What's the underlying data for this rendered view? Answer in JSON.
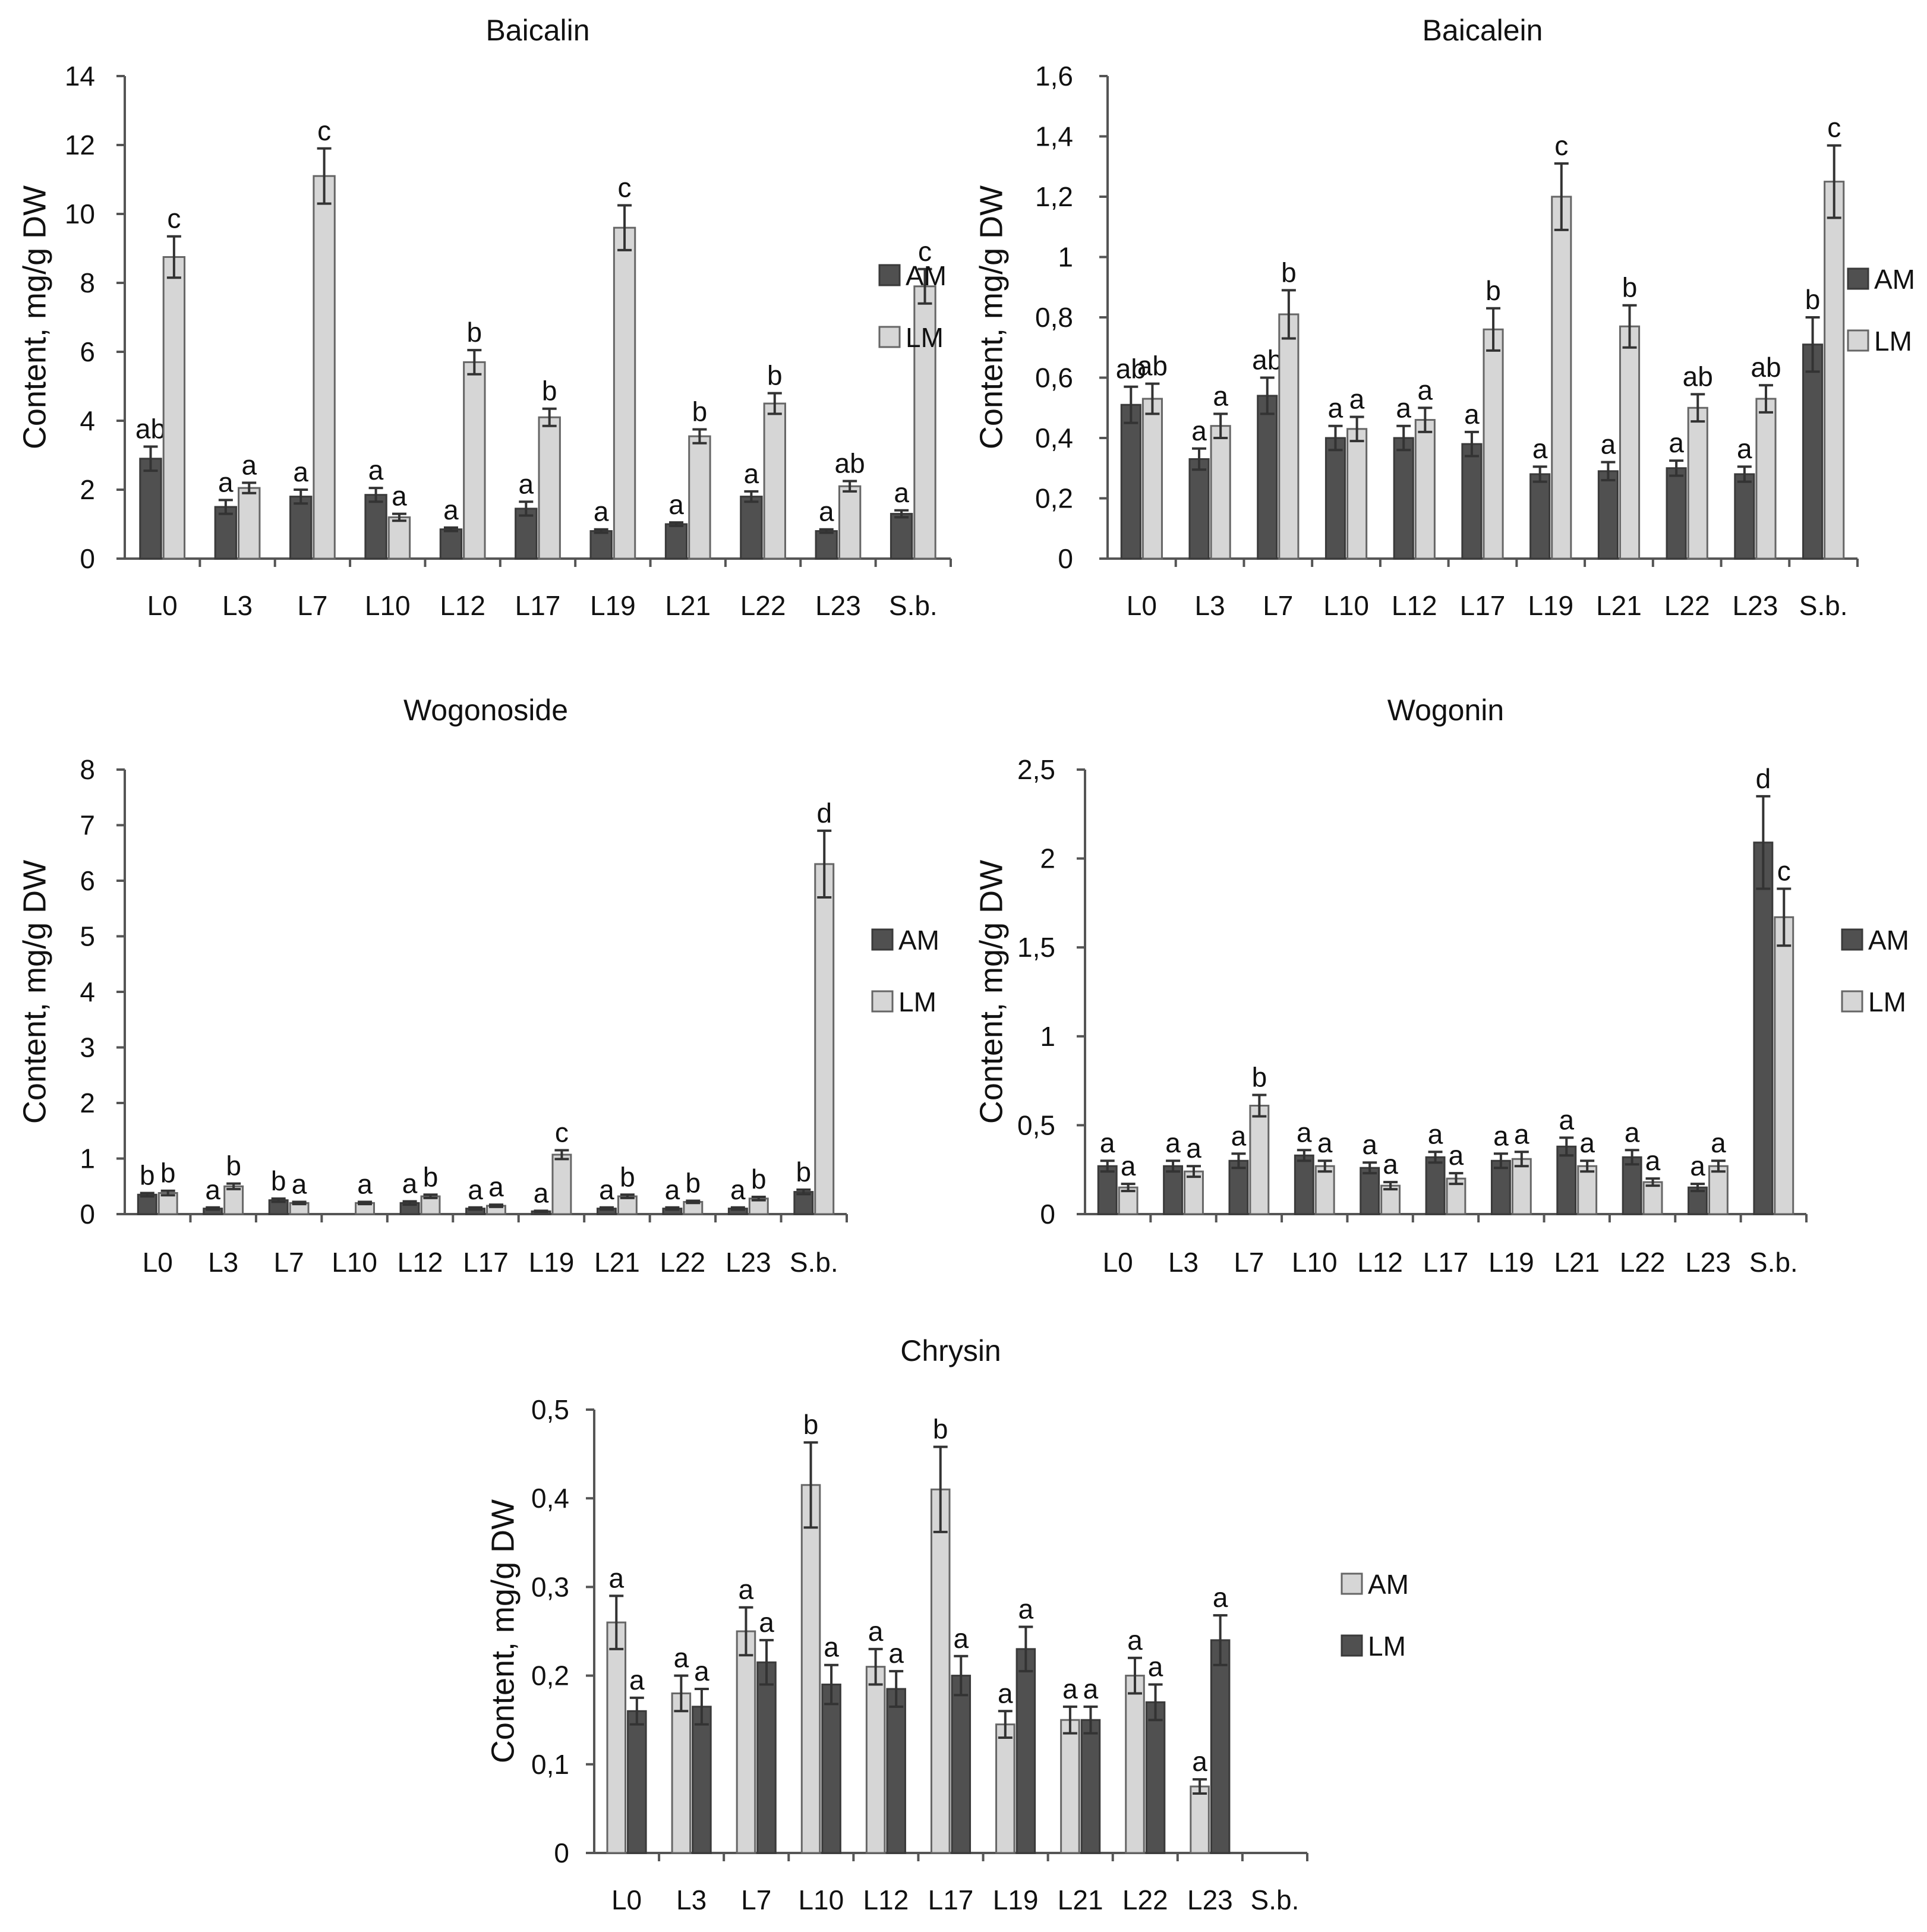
{
  "colors": {
    "dark": "#505050",
    "light": "#d6d6d6",
    "axis": "#555555",
    "text": "#111111"
  },
  "chart_data": [
    {
      "type": "bar",
      "title": "Baicalin",
      "ylabel": "Content, mg/g DW",
      "ylim": [
        0,
        14
      ],
      "yticks": [
        0,
        2,
        4,
        6,
        8,
        10,
        12,
        14
      ],
      "ytick_labels": [
        "0",
        "2",
        "4",
        "6",
        "8",
        "10",
        "12",
        "14"
      ],
      "categories": [
        "L0",
        "L3",
        "L7",
        "L10",
        "L12",
        "L17",
        "L19",
        "L21",
        "L22",
        "L23",
        "S.b."
      ],
      "series": [
        {
          "name": "AM",
          "color": "dark",
          "values": [
            2.9,
            1.5,
            1.8,
            1.85,
            0.85,
            1.45,
            0.8,
            1.0,
            1.8,
            0.8,
            1.3
          ],
          "errors": [
            0.35,
            0.2,
            0.2,
            0.2,
            0.05,
            0.2,
            0.05,
            0.05,
            0.15,
            0.05,
            0.1
          ],
          "labels": [
            "ab",
            "a",
            "a",
            "a",
            "a",
            "a",
            "a",
            "a",
            "a",
            "a",
            "a"
          ]
        },
        {
          "name": "LM",
          "color": "light",
          "values": [
            8.75,
            2.05,
            11.1,
            1.2,
            5.7,
            4.1,
            9.6,
            3.55,
            4.5,
            2.1,
            7.9
          ],
          "errors": [
            0.6,
            0.15,
            0.8,
            0.1,
            0.35,
            0.25,
            0.65,
            0.2,
            0.3,
            0.15,
            0.5
          ],
          "labels": [
            "c",
            "a",
            "c",
            "a",
            "b",
            "b",
            "c",
            "b",
            "b",
            "ab",
            "c"
          ]
        }
      ],
      "legend": "right"
    },
    {
      "type": "bar",
      "title": "Baicalein",
      "ylabel": "Content, mg/g DW",
      "ylim": [
        0,
        1.6
      ],
      "yticks": [
        0,
        0.2,
        0.4,
        0.6,
        0.8,
        1,
        1.2,
        1.4,
        1.6
      ],
      "ytick_labels": [
        "0",
        "0,2",
        "0,4",
        "0,6",
        "0,8",
        "1",
        "1,2",
        "1,4",
        "1,6"
      ],
      "categories": [
        "L0",
        "L3",
        "L7",
        "L10",
        "L12",
        "L17",
        "L19",
        "L21",
        "L22",
        "L23",
        "S.b."
      ],
      "series": [
        {
          "name": "AM",
          "color": "dark",
          "values": [
            0.51,
            0.33,
            0.54,
            0.4,
            0.4,
            0.38,
            0.28,
            0.29,
            0.3,
            0.28,
            0.71
          ],
          "errors": [
            0.06,
            0.035,
            0.06,
            0.04,
            0.04,
            0.04,
            0.025,
            0.03,
            0.025,
            0.025,
            0.09
          ],
          "labels": [
            "ab",
            "a",
            "ab",
            "a",
            "a",
            "a",
            "a",
            "a",
            "a",
            "a",
            "b"
          ]
        },
        {
          "name": "LM",
          "color": "light",
          "values": [
            0.53,
            0.44,
            0.81,
            0.43,
            0.46,
            0.76,
            1.2,
            0.77,
            0.5,
            0.53,
            1.25
          ],
          "errors": [
            0.05,
            0.04,
            0.08,
            0.04,
            0.04,
            0.07,
            0.11,
            0.07,
            0.045,
            0.045,
            0.12
          ],
          "labels": [
            "ab",
            "a",
            "b",
            "a",
            "a",
            "b",
            "c",
            "b",
            "ab",
            "ab",
            "c"
          ]
        }
      ],
      "legend": "right"
    },
    {
      "type": "bar",
      "title": "Wogonoside",
      "ylabel": "Content, mg/g DW",
      "ylim": [
        0,
        8
      ],
      "yticks": [
        0,
        1,
        2,
        3,
        4,
        5,
        6,
        7,
        8
      ],
      "ytick_labels": [
        "0",
        "1",
        "2",
        "3",
        "4",
        "5",
        "6",
        "7",
        "8"
      ],
      "categories": [
        "L0",
        "L3",
        "L7",
        "L10",
        "L12",
        "L17",
        "L19",
        "L21",
        "L22",
        "L23",
        "S.b."
      ],
      "series": [
        {
          "name": "AM",
          "color": "dark",
          "values": [
            0.35,
            0.1,
            0.25,
            0.0,
            0.2,
            0.1,
            0.05,
            0.1,
            0.1,
            0.1,
            0.4
          ],
          "errors": [
            0.03,
            0.02,
            0.03,
            0.0,
            0.03,
            0.02,
            0.01,
            0.02,
            0.02,
            0.02,
            0.04
          ],
          "labels": [
            "b",
            "a",
            "b",
            "",
            "a",
            "a",
            "a",
            "a",
            "a",
            "a",
            "b"
          ]
        },
        {
          "name": "LM",
          "color": "light",
          "values": [
            0.38,
            0.5,
            0.2,
            0.2,
            0.32,
            0.15,
            1.07,
            0.32,
            0.22,
            0.28,
            6.3
          ],
          "errors": [
            0.04,
            0.05,
            0.02,
            0.02,
            0.03,
            0.02,
            0.08,
            0.03,
            0.02,
            0.03,
            0.6
          ],
          "labels": [
            "b",
            "b",
            "a",
            "a",
            "b",
            "a",
            "c",
            "b",
            "b",
            "b",
            "d"
          ]
        }
      ],
      "legend": "right"
    },
    {
      "type": "bar",
      "title": "Wogonin",
      "ylabel": "Content, mg/g DW",
      "ylim": [
        0,
        2.5
      ],
      "yticks": [
        0,
        0.5,
        1,
        1.5,
        2,
        2.5
      ],
      "ytick_labels": [
        "0",
        "0,5",
        "1",
        "1,5",
        "2",
        "2,5"
      ],
      "categories": [
        "L0",
        "L3",
        "L7",
        "L10",
        "L12",
        "L17",
        "L19",
        "L21",
        "L22",
        "L23",
        "S.b."
      ],
      "series": [
        {
          "name": "AM",
          "color": "dark",
          "values": [
            0.27,
            0.27,
            0.3,
            0.33,
            0.26,
            0.32,
            0.3,
            0.38,
            0.32,
            0.15,
            2.09
          ],
          "errors": [
            0.03,
            0.03,
            0.04,
            0.03,
            0.03,
            0.03,
            0.04,
            0.05,
            0.04,
            0.02,
            0.26
          ],
          "labels": [
            "a",
            "a",
            "a",
            "a",
            "a",
            "a",
            "a",
            "a",
            "a",
            "a",
            "d"
          ]
        },
        {
          "name": "LM",
          "color": "light",
          "values": [
            0.15,
            0.24,
            0.61,
            0.27,
            0.16,
            0.2,
            0.31,
            0.27,
            0.18,
            0.27,
            1.67
          ],
          "errors": [
            0.02,
            0.03,
            0.06,
            0.03,
            0.02,
            0.03,
            0.04,
            0.03,
            0.02,
            0.03,
            0.16
          ],
          "labels": [
            "a",
            "a",
            "b",
            "a",
            "a",
            "a",
            "a",
            "a",
            "a",
            "a",
            "c"
          ]
        }
      ],
      "legend": "right"
    },
    {
      "type": "bar",
      "title": "Chrysin",
      "ylabel": "Content, mg/g DW",
      "ylim": [
        0,
        0.5
      ],
      "yticks": [
        0,
        0.1,
        0.2,
        0.3,
        0.4,
        0.5
      ],
      "ytick_labels": [
        "0",
        "0,1",
        "0,2",
        "0,3",
        "0,4",
        "0,5"
      ],
      "categories": [
        "L0",
        "L3",
        "L7",
        "L10",
        "L12",
        "L17",
        "L19",
        "L21",
        "L22",
        "L23",
        "S.b."
      ],
      "series": [
        {
          "name": "AM",
          "color": "light",
          "values": [
            0.26,
            0.18,
            0.25,
            0.415,
            0.21,
            0.41,
            0.145,
            0.15,
            0.2,
            0.075,
            0
          ],
          "errors": [
            0.03,
            0.02,
            0.027,
            0.048,
            0.02,
            0.048,
            0.015,
            0.015,
            0.02,
            0.008,
            0
          ],
          "labels": [
            "a",
            "a",
            "a",
            "b",
            "a",
            "b",
            "a",
            "a",
            "a",
            "a",
            ""
          ]
        },
        {
          "name": "LM",
          "color": "dark",
          "values": [
            0.16,
            0.165,
            0.215,
            0.19,
            0.185,
            0.2,
            0.23,
            0.15,
            0.17,
            0.24,
            0
          ],
          "errors": [
            0.015,
            0.02,
            0.025,
            0.022,
            0.02,
            0.022,
            0.025,
            0.015,
            0.02,
            0.028,
            0
          ],
          "labels": [
            "a",
            "a",
            "a",
            "a",
            "a",
            "a",
            "a",
            "a",
            "a",
            "a",
            ""
          ]
        }
      ],
      "legend": "right"
    }
  ]
}
